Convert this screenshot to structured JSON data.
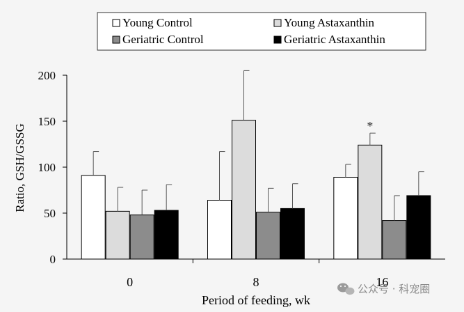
{
  "chart_data": {
    "type": "bar",
    "ylabel": "Ratio, GSH/GSSG",
    "xlabel": "Period of feeding, wk",
    "categories": [
      "0",
      "8",
      "16"
    ],
    "ylim": [
      0,
      200
    ],
    "yticks": [
      0,
      50,
      100,
      150,
      200
    ],
    "legend_position": "top",
    "series": [
      {
        "name": "Young Control",
        "color": "#ffffff",
        "values": [
          91,
          64,
          89
        ],
        "errors": [
          26,
          53,
          14
        ]
      },
      {
        "name": "Young Astaxanthin",
        "color": "#dcdcdc",
        "values": [
          52,
          151,
          124
        ],
        "errors": [
          26,
          54,
          13
        ]
      },
      {
        "name": "Geriatric Control",
        "color": "#8c8c8c",
        "values": [
          48,
          51,
          42
        ],
        "errors": [
          27,
          26,
          27
        ]
      },
      {
        "name": "Geriatric Astaxanthin",
        "color": "#000000",
        "values": [
          53,
          55,
          69
        ],
        "errors": [
          28,
          27,
          26
        ]
      }
    ],
    "annotations": [
      {
        "text": "*",
        "category": "16",
        "series": "Young Astaxanthin"
      }
    ]
  },
  "watermark": {
    "icon": "wechat-icon",
    "text": "公众号 · 科宠圈"
  }
}
